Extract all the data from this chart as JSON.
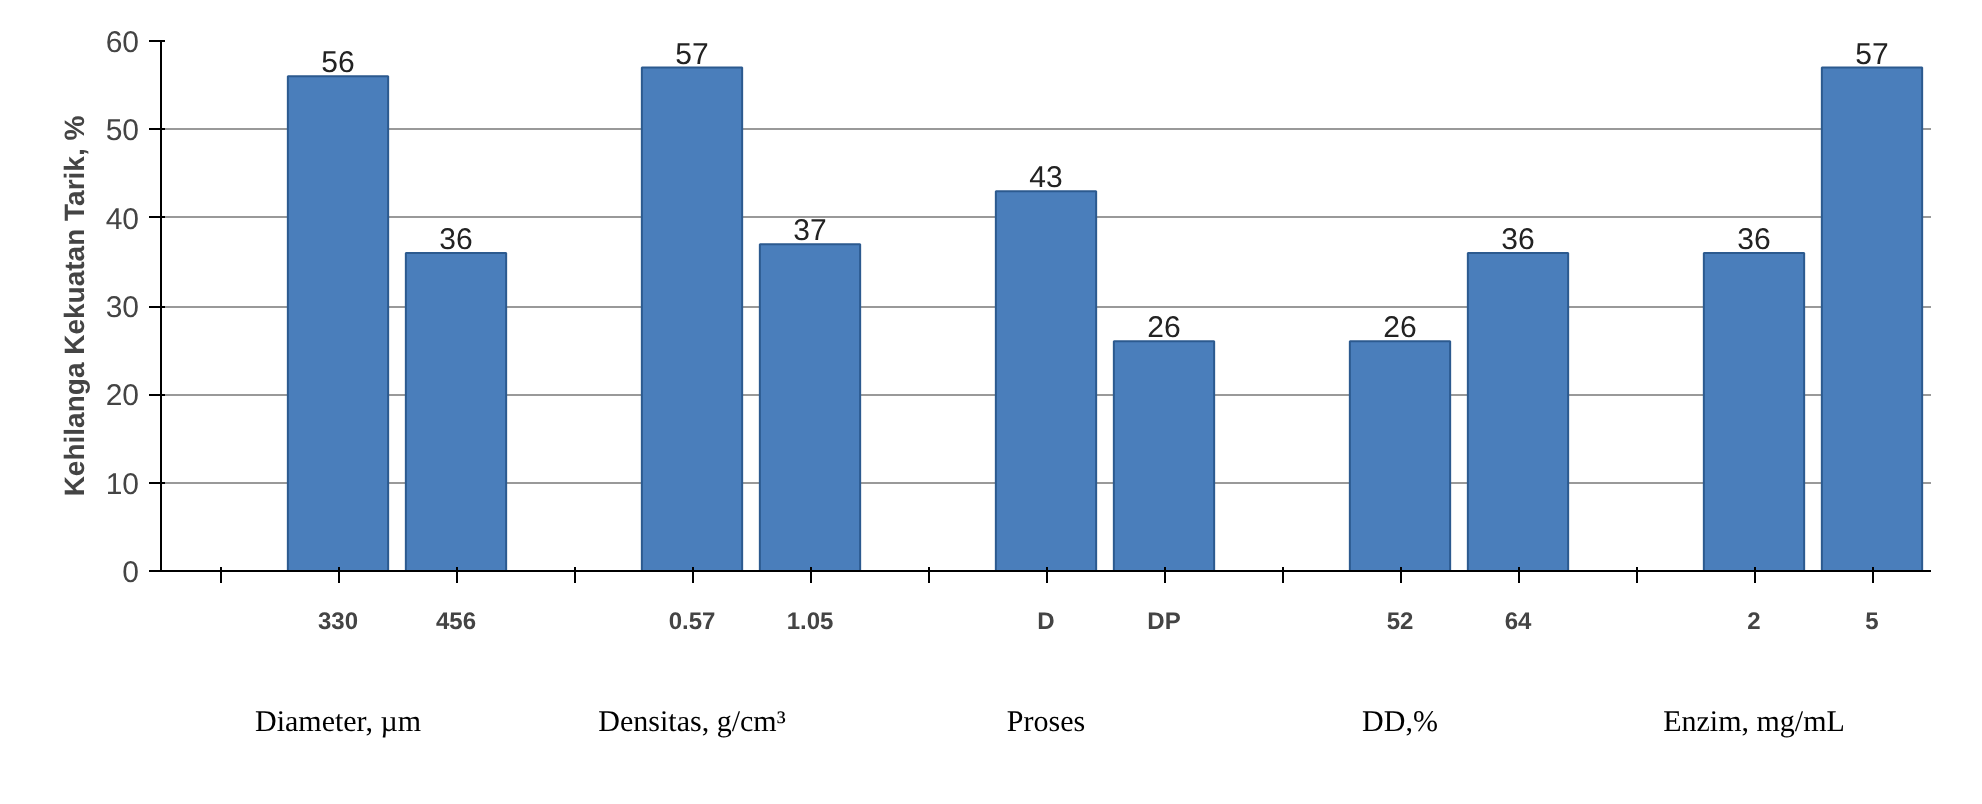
{
  "chart_data": {
    "type": "bar",
    "ylabel": "Kehilanga Kekuatan Tarik, %",
    "categories": [
      null,
      "330",
      "456",
      null,
      "0.57",
      "1.05",
      null,
      "D",
      "DP",
      null,
      "52",
      "64",
      null,
      "2",
      "5"
    ],
    "values": [
      null,
      56,
      36,
      null,
      57,
      37,
      null,
      43,
      26,
      null,
      26,
      36,
      null,
      36,
      57
    ],
    "color": "#4a7ebb",
    "data_labels": true,
    "ylim": [
      0,
      60
    ],
    "yticks": [
      0,
      10,
      20,
      30,
      40,
      50,
      60
    ],
    "grid": "y",
    "annotations": [
      "Diameter, µm",
      "Densitas, g/cm³",
      "Proses",
      "DD,%",
      "Enzim, mg/mL"
    ]
  }
}
